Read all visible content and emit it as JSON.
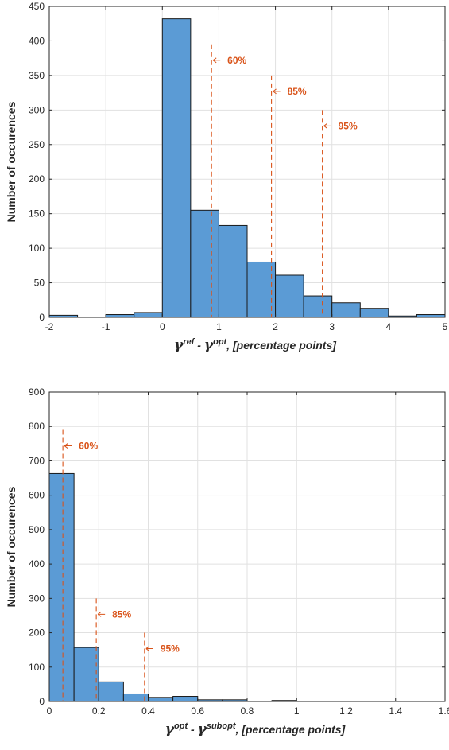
{
  "chart_data": [
    {
      "type": "bar",
      "xlabel": "γref - γopt, [percentage points]",
      "xlabel_parts": {
        "sym1": "γ",
        "sup1": "ref",
        "mid": " - ",
        "sym2": "γ",
        "sup2": "opt",
        "tail": ", [percentage points]"
      },
      "ylabel": "Number of occurences",
      "xlim": [
        -2,
        5
      ],
      "ylim": [
        0,
        450
      ],
      "xticks": [
        -2,
        -1,
        0,
        1,
        2,
        3,
        4,
        5
      ],
      "yticks": [
        0,
        50,
        100,
        150,
        200,
        250,
        300,
        350,
        400,
        450
      ],
      "grid": true,
      "bin_edges": [
        -2,
        -1.5,
        -1,
        -0.5,
        0,
        0.5,
        1,
        1.5,
        2,
        2.5,
        3,
        3.5,
        4,
        4.5,
        5
      ],
      "values": [
        3,
        0,
        4,
        7,
        432,
        155,
        133,
        80,
        61,
        31,
        21,
        13,
        2,
        4
      ],
      "percentiles": [
        {
          "label": "60%",
          "x": 0.87,
          "y_top": 395
        },
        {
          "label": "85%",
          "x": 1.93,
          "y_top": 350
        },
        {
          "label": "95%",
          "x": 2.83,
          "y_top": 300
        }
      ],
      "colors": {
        "bar": "#5B9BD5",
        "percentile": "#D95319"
      }
    },
    {
      "type": "bar",
      "xlabel": "γopt - γsubopt, [percentage points]",
      "xlabel_parts": {
        "sym1": "γ",
        "sup1": "opt",
        "mid": " - ",
        "sym2": "γ",
        "sup2": "subopt",
        "tail": ", [percentage points]"
      },
      "ylabel": "Number of occurences",
      "xlim": [
        0,
        1.6
      ],
      "ylim": [
        0,
        900
      ],
      "xticks": [
        0,
        0.2,
        0.4,
        0.6,
        0.8,
        1,
        1.2,
        1.4,
        1.6
      ],
      "xtick_labels": [
        "0",
        "0.2",
        "0.4",
        "0.6",
        "0.8",
        "1",
        "1.2",
        "1.4",
        "1.6"
      ],
      "yticks": [
        0,
        100,
        200,
        300,
        400,
        500,
        600,
        700,
        800,
        900
      ],
      "grid": true,
      "bin_edges": [
        0,
        0.1,
        0.2,
        0.3,
        0.4,
        0.5,
        0.6,
        0.7,
        0.8,
        0.9,
        1.0,
        1.1,
        1.2,
        1.3,
        1.4,
        1.5,
        1.6
      ],
      "values": [
        663,
        157,
        57,
        22,
        12,
        15,
        5,
        5,
        1,
        3,
        1,
        1,
        1,
        1,
        0,
        1
      ],
      "percentiles": [
        {
          "label": "60%",
          "x": 0.055,
          "y_top": 790
        },
        {
          "label": "85%",
          "x": 0.19,
          "y_top": 300
        },
        {
          "label": "95%",
          "x": 0.385,
          "y_top": 200
        }
      ],
      "colors": {
        "bar": "#5B9BD5",
        "percentile": "#D95319"
      }
    }
  ]
}
